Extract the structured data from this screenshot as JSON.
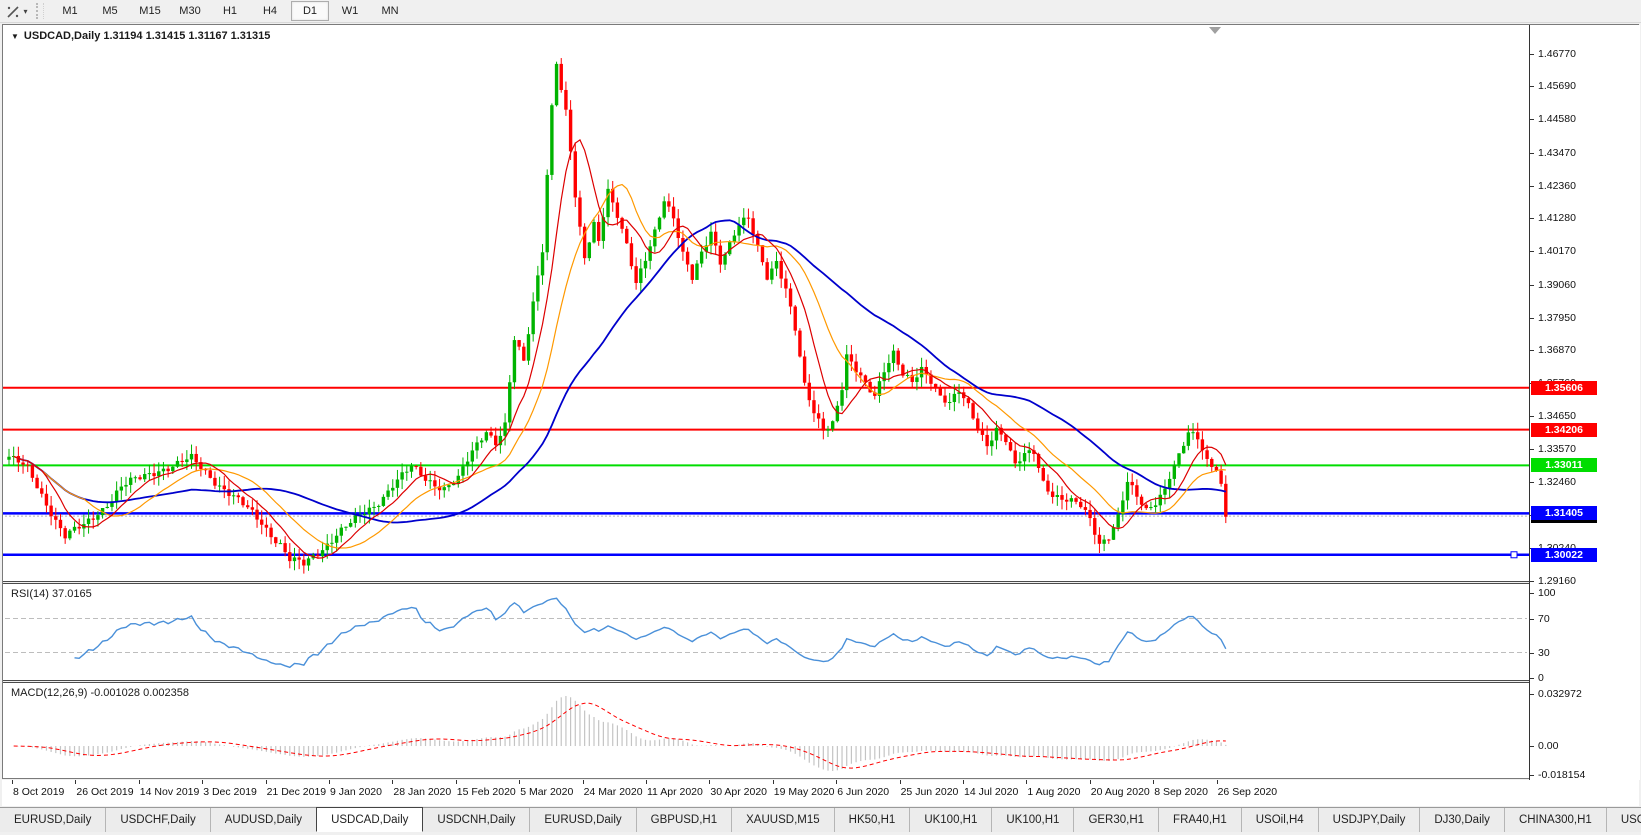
{
  "toolbar": {
    "cursor_tool": "crosshair",
    "timeframes": [
      "M1",
      "M5",
      "M15",
      "M30",
      "H1",
      "H4",
      "D1",
      "W1",
      "MN"
    ],
    "active_timeframe": "D1"
  },
  "chart_data": {
    "type": "candlestick",
    "symbol": "USDCAD",
    "timeframe": "Daily",
    "title_line": "USDCAD,Daily 1.31194 1.31415 1.31167 1.31315",
    "ohlc": {
      "open": "1.31194",
      "high": "1.31415",
      "low": "1.31167",
      "close": "1.31315"
    },
    "x_range": [
      "8 Oct 2019",
      "7 Oct 2020"
    ],
    "y_range": [
      1.287,
      1.4774
    ],
    "num_bars": 261,
    "y_axis_ticks": [
      "1.46770",
      "1.45690",
      "1.44580",
      "1.43470",
      "1.42360",
      "1.41280",
      "1.40170",
      "1.39060",
      "1.37950",
      "1.36870",
      "1.35760",
      "1.34650",
      "1.33570",
      "1.32460",
      "1.31350",
      "1.30240",
      "1.29160"
    ],
    "x_axis_labels": [
      "8 Oct 2019",
      "26 Oct 2019",
      "14 Nov 2019",
      "3 Dec 2019",
      "21 Dec 2019",
      "9 Jan 2020",
      "28 Jan 2020",
      "15 Feb 2020",
      "5 Mar 2020",
      "24 Mar 2020",
      "11 Apr 2020",
      "30 Apr 2020",
      "19 May 2020",
      "6 Jun 2020",
      "25 Jun 2020",
      "14 Jul 2020",
      "1 Aug 2020",
      "20 Aug 2020",
      "8 Sep 2020",
      "26 Sep 2020"
    ],
    "price_keypoints": [
      [
        0,
        1.333
      ],
      [
        4,
        1.3285
      ],
      [
        9,
        1.315
      ],
      [
        12,
        1.3065
      ],
      [
        16,
        1.3095
      ],
      [
        20,
        1.316
      ],
      [
        24,
        1.323
      ],
      [
        28,
        1.3255
      ],
      [
        32,
        1.329
      ],
      [
        36,
        1.3305
      ],
      [
        39,
        1.332
      ],
      [
        42,
        1.328
      ],
      [
        46,
        1.3225
      ],
      [
        50,
        1.3165
      ],
      [
        54,
        1.311
      ],
      [
        58,
        1.304
      ],
      [
        60,
        1.2985
      ],
      [
        63,
        1.2965
      ],
      [
        66,
        1.301
      ],
      [
        70,
        1.3075
      ],
      [
        74,
        1.3115
      ],
      [
        78,
        1.3165
      ],
      [
        82,
        1.324
      ],
      [
        86,
        1.329
      ],
      [
        89,
        1.3255
      ],
      [
        93,
        1.323
      ],
      [
        96,
        1.3255
      ],
      [
        99,
        1.334
      ],
      [
        102,
        1.342
      ],
      [
        104,
        1.3385
      ],
      [
        106,
        1.344
      ],
      [
        108,
        1.372
      ],
      [
        110,
        1.364
      ],
      [
        112,
        1.384
      ],
      [
        114,
        1.403
      ],
      [
        115,
        1.428
      ],
      [
        116,
        1.451
      ],
      [
        117,
        1.466
      ],
      [
        118,
        1.456
      ],
      [
        119,
        1.448
      ],
      [
        120,
        1.435
      ],
      [
        121,
        1.419
      ],
      [
        122,
        1.408
      ],
      [
        123,
        1.399
      ],
      [
        124,
        1.405
      ],
      [
        125,
        1.411
      ],
      [
        126,
        1.406
      ],
      [
        127,
        1.415
      ],
      [
        128,
        1.423
      ],
      [
        130,
        1.414
      ],
      [
        132,
        1.403
      ],
      [
        134,
        1.39
      ],
      [
        136,
        1.399
      ],
      [
        138,
        1.409
      ],
      [
        140,
        1.42
      ],
      [
        142,
        1.413
      ],
      [
        144,
        1.4
      ],
      [
        146,
        1.392
      ],
      [
        148,
        1.401
      ],
      [
        150,
        1.409
      ],
      [
        152,
        1.399
      ],
      [
        154,
        1.404
      ],
      [
        156,
        1.41
      ],
      [
        158,
        1.412
      ],
      [
        160,
        1.403
      ],
      [
        162,
        1.394
      ],
      [
        164,
        1.399
      ],
      [
        166,
        1.389
      ],
      [
        168,
        1.375
      ],
      [
        170,
        1.356
      ],
      [
        172,
        1.348
      ],
      [
        174,
        1.343
      ],
      [
        176,
        1.345
      ],
      [
        178,
        1.356
      ],
      [
        179,
        1.366
      ],
      [
        181,
        1.361
      ],
      [
        183,
        1.357
      ],
      [
        185,
        1.354
      ],
      [
        187,
        1.363
      ],
      [
        189,
        1.368
      ],
      [
        191,
        1.36
      ],
      [
        193,
        1.357
      ],
      [
        195,
        1.362
      ],
      [
        197,
        1.359
      ],
      [
        199,
        1.354
      ],
      [
        201,
        1.3515
      ],
      [
        203,
        1.3545
      ],
      [
        205,
        1.349
      ],
      [
        207,
        1.342
      ],
      [
        209,
        1.3375
      ],
      [
        211,
        1.343
      ],
      [
        213,
        1.339
      ],
      [
        215,
        1.3295
      ],
      [
        217,
        1.333
      ],
      [
        219,
        1.3345
      ],
      [
        221,
        1.325
      ],
      [
        223,
        1.321
      ],
      [
        225,
        1.319
      ],
      [
        227,
        1.3175
      ],
      [
        229,
        1.316
      ],
      [
        231,
        1.312
      ],
      [
        233,
        1.3045
      ],
      [
        235,
        1.307
      ],
      [
        237,
        1.313
      ],
      [
        239,
        1.324
      ],
      [
        241,
        1.319
      ],
      [
        243,
        1.315
      ],
      [
        245,
        1.3185
      ],
      [
        247,
        1.323
      ],
      [
        248,
        1.327
      ],
      [
        250,
        1.333
      ],
      [
        252,
        1.34
      ],
      [
        254,
        1.339
      ],
      [
        256,
        1.332
      ],
      [
        258,
        1.33
      ],
      [
        259,
        1.324
      ],
      [
        260,
        1.3135
      ]
    ],
    "moving_averages": [
      {
        "name": "fast",
        "period": 8,
        "color": "#dd0000"
      },
      {
        "name": "medium",
        "period": 17,
        "color": "#ff9900"
      },
      {
        "name": "slow",
        "period": 40,
        "color": "#0000cc"
      }
    ],
    "hlines": [
      {
        "price": 1.35606,
        "label": "1.35606",
        "color": "#ff0000",
        "width": 2
      },
      {
        "price": 1.34206,
        "label": "1.34206",
        "color": "#ff0000",
        "width": 2
      },
      {
        "price": 1.33011,
        "label": "1.33011",
        "color": "#00dd00",
        "width": 2
      },
      {
        "price": 1.31405,
        "label": "1.31405",
        "color": "#0000ff",
        "width": 2.5
      },
      {
        "price": 1.30022,
        "label": "1.30022",
        "color": "#0000ff",
        "width": 2.5,
        "handle": true
      }
    ],
    "bid": {
      "price": 1.31315,
      "label": "1.31315",
      "color": "#000000"
    }
  },
  "indicators": {
    "rsi": {
      "label": "RSI(14) 37.0165",
      "name": "RSI",
      "period": 14,
      "current": 37.0165,
      "scale": [
        {
          "v": 100,
          "t": "100"
        },
        {
          "v": 70,
          "t": "70"
        },
        {
          "v": 30,
          "t": "30"
        },
        {
          "v": 0,
          "t": "0"
        }
      ],
      "levels": [
        70,
        30
      ]
    },
    "macd": {
      "label": "MACD(12,26,9) -0.001028 0.002358",
      "name": "MACD",
      "fast": 12,
      "slow": 26,
      "signal": 9,
      "current_macd": -0.001028,
      "current_signal": 0.002358,
      "scale_max": "0.032972",
      "scale_zero": "0.00",
      "scale_min": "-0.018154"
    }
  },
  "colors": {
    "bull": "#00b300",
    "bear": "#ff0000",
    "ma_fast": "#dd0000",
    "ma_medium": "#ff9900",
    "ma_slow": "#0000cc",
    "rsi": "#4a90d9",
    "rsi_level": "#bdbdbd",
    "macd_hist": "#c4c4c4",
    "macd_signal": "#ff0000",
    "bid_line": "#b0b0b0",
    "shift_marker": "#a0a0a0"
  },
  "tabs": {
    "items": [
      "EURUSD,Daily",
      "USDCHF,Daily",
      "AUDUSD,Daily",
      "USDCAD,Daily",
      "USDCNH,Daily",
      "EURUSD,Daily",
      "GBPUSD,H1",
      "XAUUSD,M15",
      "HK50,H1",
      "UK100,H1",
      "UK100,H1",
      "GER30,H1",
      "FRA40,H1",
      "USOil,H4",
      "USDJPY,Daily",
      "DJ30,Daily",
      "CHINA300,H1",
      "USOil,H"
    ],
    "active_index": 3,
    "scroll_left": "◄",
    "scroll_right": "►"
  }
}
